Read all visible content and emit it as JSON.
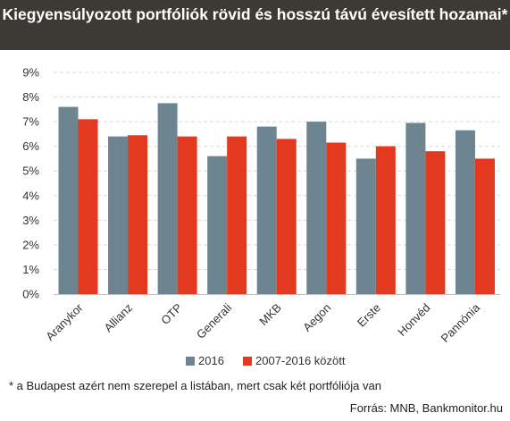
{
  "header": {
    "title": "Kiegyensúlyozott portfóliók rövid és hosszú távú évesített hozamai*"
  },
  "chart_data": {
    "type": "bar",
    "title": "Kiegyensúlyozott portfóliók rövid és hosszú távú évesített hozamai*",
    "xlabel": "",
    "ylabel": "",
    "categories": [
      "Aranykor",
      "Allianz",
      "OTP",
      "Generali",
      "MKB",
      "Aegon",
      "Erste",
      "Honvéd",
      "Pannónia"
    ],
    "series": [
      {
        "name": "2016",
        "color": "#6d8591",
        "values": [
          7.6,
          6.4,
          7.75,
          5.6,
          6.8,
          7.0,
          5.5,
          6.95,
          6.65
        ]
      },
      {
        "name": "2007-2016 között",
        "color": "#e3391f",
        "values": [
          7.1,
          6.45,
          6.4,
          6.4,
          6.3,
          6.15,
          6.0,
          5.8,
          5.5
        ]
      }
    ],
    "ylim": [
      0,
      9
    ],
    "yticks": [
      "0%",
      "1%",
      "2%",
      "3%",
      "4%",
      "5%",
      "6%",
      "7%",
      "8%",
      "9%"
    ],
    "grid": true,
    "legend_position": "bottom-center"
  },
  "footnote": "* a Budapest azért nem szerepel a listában, mert csak két portfóliója van",
  "source": "Forrás: MNB, Bankmonitor.hu"
}
